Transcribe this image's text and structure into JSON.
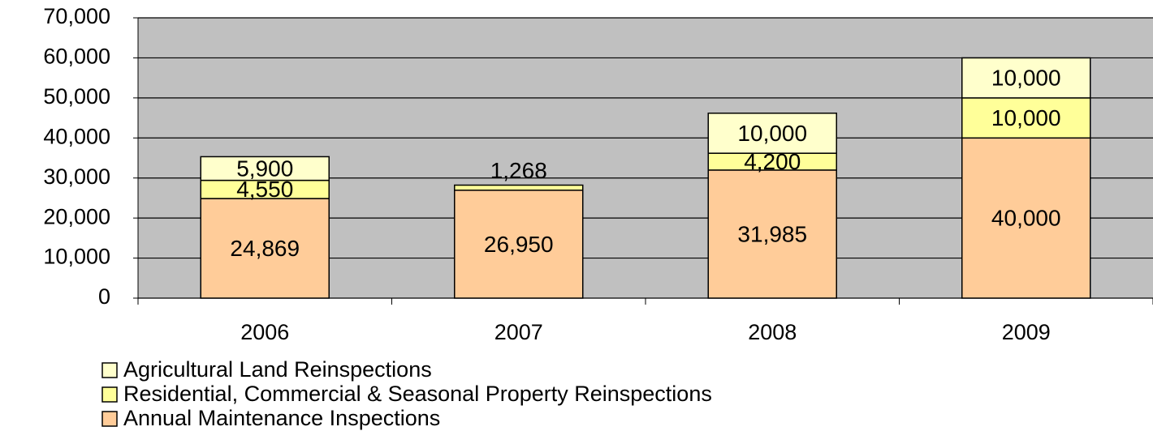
{
  "chart_data": {
    "type": "stacked_bar",
    "categories": [
      "2006",
      "2007",
      "2008",
      "2009"
    ],
    "series": [
      {
        "name": "Annual Maintenance Inspections",
        "color": "#ffcc99",
        "values": [
          24869,
          26950,
          31985,
          40000
        ],
        "value_labels": [
          "24,869",
          "26,950",
          "31,985",
          "40,000"
        ]
      },
      {
        "name": "Residential, Commercial & Seasonal Property Reinspections",
        "color": "#ffff99",
        "values": [
          4550,
          1268,
          4200,
          10000
        ],
        "value_labels": [
          "4,550",
          "1,268",
          "4,200",
          "10,000"
        ]
      },
      {
        "name": "Agricultural Land Reinspections",
        "color": "#ffffcc",
        "values": [
          5900,
          null,
          10000,
          10000
        ],
        "value_labels": [
          "5,900",
          null,
          "10,000",
          "10,000"
        ]
      }
    ],
    "ylim": [
      0,
      70000
    ],
    "yticks": [
      0,
      {
        "value": 10000,
        "label": "10,000"
      },
      {
        "value": 20000,
        "label": "20,000"
      },
      {
        "value": 30000,
        "label": "30,000"
      },
      {
        "value": 40000,
        "label": "40,000"
      },
      {
        "value": 50000,
        "label": "50,000"
      },
      {
        "value": 60000,
        "label": "60,000"
      },
      {
        "value": 70000,
        "label": "70,000"
      }
    ],
    "grid": true,
    "plot_background": "#c0c0c0",
    "legend": "bottom"
  }
}
